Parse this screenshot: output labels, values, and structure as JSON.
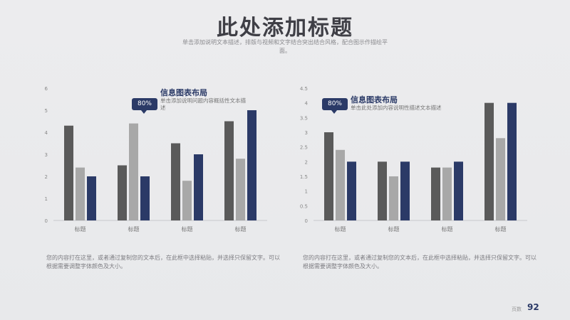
{
  "title": "此处添加标题",
  "subtitle": "单击添加说明文本描述，排版与视频和文字结合突出结合风格，配合图示作描绘平面。",
  "colors": {
    "dark": "#5a5a5a",
    "light": "#a8a8a8",
    "navy": "#2b3a67"
  },
  "chart_data": [
    {
      "type": "bar",
      "categories": [
        "标题",
        "标题",
        "标题",
        "标题"
      ],
      "series": [
        {
          "values": [
            4.3,
            2.5,
            3.5,
            4.5
          ]
        },
        {
          "values": [
            2.4,
            4.4,
            1.8,
            2.8
          ]
        },
        {
          "values": [
            2.0,
            2.0,
            3.0,
            5.0
          ]
        }
      ],
      "yticks": [
        "0",
        "1",
        "2",
        "3",
        "4",
        "5",
        "6"
      ],
      "ylim": [
        0,
        6
      ],
      "grid": false
    },
    {
      "type": "bar",
      "categories": [
        "标题",
        "标题",
        "标题",
        "标题"
      ],
      "series": [
        {
          "values": [
            3.0,
            2.0,
            1.8,
            4.0
          ]
        },
        {
          "values": [
            2.4,
            1.5,
            1.8,
            2.8
          ]
        },
        {
          "values": [
            2.0,
            2.0,
            2.0,
            4.0
          ]
        }
      ],
      "yticks": [
        "0",
        "0.5",
        "1",
        "1.5",
        "2",
        "2.5",
        "3",
        "3.5",
        "4",
        "4.5"
      ],
      "ylim": [
        0,
        4.5
      ],
      "grid": false
    }
  ],
  "info1": {
    "badge": "80%",
    "title": "信息图表布局",
    "desc": "单击添加说明问题内容概括性文本描述"
  },
  "info2": {
    "badge": "80%",
    "title": "信息图表布局",
    "desc": "单击此处添加内容说明性描述文本描述"
  },
  "note1": "您的内容打在这里，或者通过复制您的文本后，在此框中选择粘贴，并选择只保留文字。可以根据需要调整字体颜色及大小。",
  "note2": "您的内容打在这里，或者通过复制您的文本后，在此框中选择粘贴，并选择只保留文字。可以根据需要调整字体颜色及大小。",
  "footer": {
    "label": "页数",
    "page": "92"
  }
}
